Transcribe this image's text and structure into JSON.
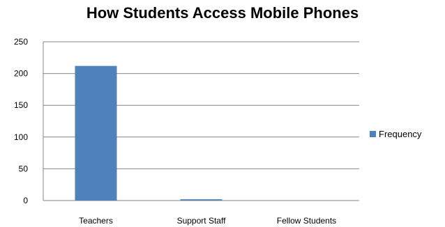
{
  "chart_data": {
    "type": "bar",
    "title": "How Students Access Mobile Phones",
    "xlabel": "",
    "ylabel": "",
    "categories": [
      "Teachers",
      "Support Staff",
      "Fellow Students"
    ],
    "series": [
      {
        "name": "Frequency",
        "values": [
          212,
          2,
          0
        ],
        "color": "#4f81bd"
      }
    ],
    "ylim": [
      0,
      250
    ],
    "yticks": [
      0,
      50,
      100,
      150,
      200,
      250
    ],
    "grid": true,
    "legend": "right"
  }
}
